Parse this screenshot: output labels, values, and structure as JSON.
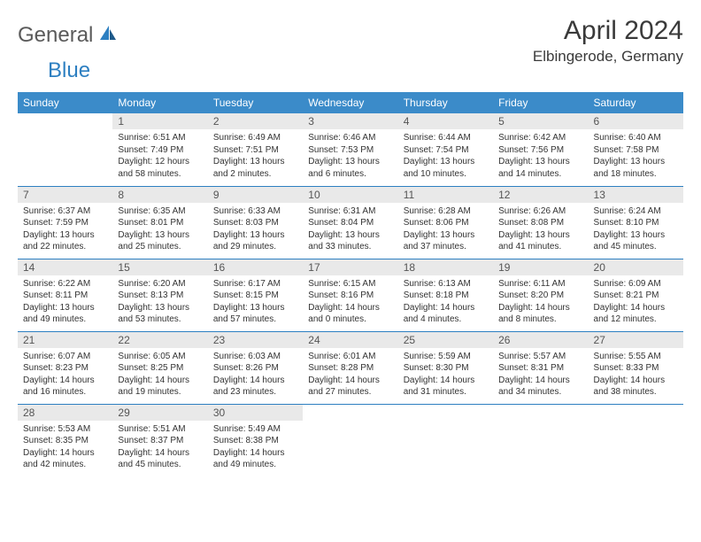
{
  "logo": {
    "part1": "General",
    "part2": "Blue"
  },
  "title": "April 2024",
  "location": "Elbingerode, Germany",
  "colors": {
    "header_bg": "#3b8bc9",
    "divider": "#2d7fc1",
    "daynum_bg": "#e9e9e9",
    "text": "#333333",
    "logo_gray": "#5a5a5a",
    "logo_blue": "#2d7fc1"
  },
  "fonts": {
    "title_size": 30,
    "location_size": 17,
    "dayhead_size": 12,
    "daynum_size": 12,
    "body_size": 10
  },
  "day_names": [
    "Sunday",
    "Monday",
    "Tuesday",
    "Wednesday",
    "Thursday",
    "Friday",
    "Saturday"
  ],
  "weeks": [
    [
      {
        "n": "",
        "lines": []
      },
      {
        "n": "1",
        "lines": [
          "Sunrise: 6:51 AM",
          "Sunset: 7:49 PM",
          "Daylight: 12 hours",
          "and 58 minutes."
        ]
      },
      {
        "n": "2",
        "lines": [
          "Sunrise: 6:49 AM",
          "Sunset: 7:51 PM",
          "Daylight: 13 hours",
          "and 2 minutes."
        ]
      },
      {
        "n": "3",
        "lines": [
          "Sunrise: 6:46 AM",
          "Sunset: 7:53 PM",
          "Daylight: 13 hours",
          "and 6 minutes."
        ]
      },
      {
        "n": "4",
        "lines": [
          "Sunrise: 6:44 AM",
          "Sunset: 7:54 PM",
          "Daylight: 13 hours",
          "and 10 minutes."
        ]
      },
      {
        "n": "5",
        "lines": [
          "Sunrise: 6:42 AM",
          "Sunset: 7:56 PM",
          "Daylight: 13 hours",
          "and 14 minutes."
        ]
      },
      {
        "n": "6",
        "lines": [
          "Sunrise: 6:40 AM",
          "Sunset: 7:58 PM",
          "Daylight: 13 hours",
          "and 18 minutes."
        ]
      }
    ],
    [
      {
        "n": "7",
        "lines": [
          "Sunrise: 6:37 AM",
          "Sunset: 7:59 PM",
          "Daylight: 13 hours",
          "and 22 minutes."
        ]
      },
      {
        "n": "8",
        "lines": [
          "Sunrise: 6:35 AM",
          "Sunset: 8:01 PM",
          "Daylight: 13 hours",
          "and 25 minutes."
        ]
      },
      {
        "n": "9",
        "lines": [
          "Sunrise: 6:33 AM",
          "Sunset: 8:03 PM",
          "Daylight: 13 hours",
          "and 29 minutes."
        ]
      },
      {
        "n": "10",
        "lines": [
          "Sunrise: 6:31 AM",
          "Sunset: 8:04 PM",
          "Daylight: 13 hours",
          "and 33 minutes."
        ]
      },
      {
        "n": "11",
        "lines": [
          "Sunrise: 6:28 AM",
          "Sunset: 8:06 PM",
          "Daylight: 13 hours",
          "and 37 minutes."
        ]
      },
      {
        "n": "12",
        "lines": [
          "Sunrise: 6:26 AM",
          "Sunset: 8:08 PM",
          "Daylight: 13 hours",
          "and 41 minutes."
        ]
      },
      {
        "n": "13",
        "lines": [
          "Sunrise: 6:24 AM",
          "Sunset: 8:10 PM",
          "Daylight: 13 hours",
          "and 45 minutes."
        ]
      }
    ],
    [
      {
        "n": "14",
        "lines": [
          "Sunrise: 6:22 AM",
          "Sunset: 8:11 PM",
          "Daylight: 13 hours",
          "and 49 minutes."
        ]
      },
      {
        "n": "15",
        "lines": [
          "Sunrise: 6:20 AM",
          "Sunset: 8:13 PM",
          "Daylight: 13 hours",
          "and 53 minutes."
        ]
      },
      {
        "n": "16",
        "lines": [
          "Sunrise: 6:17 AM",
          "Sunset: 8:15 PM",
          "Daylight: 13 hours",
          "and 57 minutes."
        ]
      },
      {
        "n": "17",
        "lines": [
          "Sunrise: 6:15 AM",
          "Sunset: 8:16 PM",
          "Daylight: 14 hours",
          "and 0 minutes."
        ]
      },
      {
        "n": "18",
        "lines": [
          "Sunrise: 6:13 AM",
          "Sunset: 8:18 PM",
          "Daylight: 14 hours",
          "and 4 minutes."
        ]
      },
      {
        "n": "19",
        "lines": [
          "Sunrise: 6:11 AM",
          "Sunset: 8:20 PM",
          "Daylight: 14 hours",
          "and 8 minutes."
        ]
      },
      {
        "n": "20",
        "lines": [
          "Sunrise: 6:09 AM",
          "Sunset: 8:21 PM",
          "Daylight: 14 hours",
          "and 12 minutes."
        ]
      }
    ],
    [
      {
        "n": "21",
        "lines": [
          "Sunrise: 6:07 AM",
          "Sunset: 8:23 PM",
          "Daylight: 14 hours",
          "and 16 minutes."
        ]
      },
      {
        "n": "22",
        "lines": [
          "Sunrise: 6:05 AM",
          "Sunset: 8:25 PM",
          "Daylight: 14 hours",
          "and 19 minutes."
        ]
      },
      {
        "n": "23",
        "lines": [
          "Sunrise: 6:03 AM",
          "Sunset: 8:26 PM",
          "Daylight: 14 hours",
          "and 23 minutes."
        ]
      },
      {
        "n": "24",
        "lines": [
          "Sunrise: 6:01 AM",
          "Sunset: 8:28 PM",
          "Daylight: 14 hours",
          "and 27 minutes."
        ]
      },
      {
        "n": "25",
        "lines": [
          "Sunrise: 5:59 AM",
          "Sunset: 8:30 PM",
          "Daylight: 14 hours",
          "and 31 minutes."
        ]
      },
      {
        "n": "26",
        "lines": [
          "Sunrise: 5:57 AM",
          "Sunset: 8:31 PM",
          "Daylight: 14 hours",
          "and 34 minutes."
        ]
      },
      {
        "n": "27",
        "lines": [
          "Sunrise: 5:55 AM",
          "Sunset: 8:33 PM",
          "Daylight: 14 hours",
          "and 38 minutes."
        ]
      }
    ],
    [
      {
        "n": "28",
        "lines": [
          "Sunrise: 5:53 AM",
          "Sunset: 8:35 PM",
          "Daylight: 14 hours",
          "and 42 minutes."
        ]
      },
      {
        "n": "29",
        "lines": [
          "Sunrise: 5:51 AM",
          "Sunset: 8:37 PM",
          "Daylight: 14 hours",
          "and 45 minutes."
        ]
      },
      {
        "n": "30",
        "lines": [
          "Sunrise: 5:49 AM",
          "Sunset: 8:38 PM",
          "Daylight: 14 hours",
          "and 49 minutes."
        ]
      },
      {
        "n": "",
        "lines": []
      },
      {
        "n": "",
        "lines": []
      },
      {
        "n": "",
        "lines": []
      },
      {
        "n": "",
        "lines": []
      }
    ]
  ]
}
